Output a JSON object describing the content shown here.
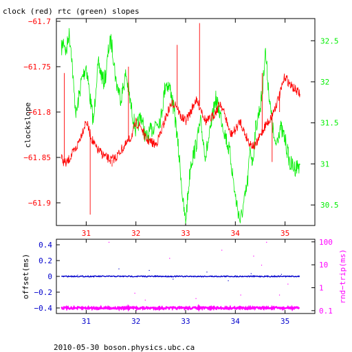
{
  "title": "clock (red) rtc (green) slopes",
  "footer": "2010-05-30  boson.physics.ubc.ca",
  "colors": {
    "clock": "#ff0000",
    "rtc": "#00ee00",
    "offset": "#0000cc",
    "roundtrip": "#ff00ff",
    "axes": "#000000"
  },
  "chart_data": [
    {
      "type": "line",
      "name": "top-panel",
      "ylabel_left": "clockslope",
      "xlim": [
        30.4,
        35.6
      ],
      "x_ticks": [
        31,
        32,
        33,
        34,
        35
      ],
      "ylim_left": [
        -61.925,
        -61.697
      ],
      "y_ticks_left": [
        -61.7,
        -61.75,
        -61.8,
        -61.85,
        -61.9
      ],
      "y_tick_labels_left": [
        "−61.7",
        "−61.75",
        "−61.8",
        "−61.85",
        "−61.9"
      ],
      "ylim_right": [
        30.25,
        32.77
      ],
      "y_ticks_right": [
        32.5,
        32,
        31.5,
        31,
        30.5
      ],
      "series": [
        {
          "axis": "left",
          "x": [
            30.5,
            30.55,
            30.6,
            30.7,
            30.8,
            30.9,
            31.0,
            31.1,
            31.2,
            31.3,
            31.4,
            31.5,
            31.6,
            31.7,
            31.8,
            31.9,
            32.0,
            32.1,
            32.2,
            32.3,
            32.4,
            32.5,
            32.6,
            32.7,
            32.8,
            32.9,
            33.0,
            33.1,
            33.2,
            33.3,
            33.4,
            33.5,
            33.6,
            33.7,
            33.8,
            33.9,
            34.0,
            34.1,
            34.2,
            34.3,
            34.4,
            34.5,
            34.6,
            34.7,
            34.8,
            34.9,
            35.0,
            35.1,
            35.2,
            35.3
          ],
          "y": [
            -61.85,
            -61.855,
            -61.857,
            -61.848,
            -61.84,
            -61.825,
            -61.81,
            -61.828,
            -61.84,
            -61.845,
            -61.85,
            -61.853,
            -61.85,
            -61.842,
            -61.836,
            -61.828,
            -61.812,
            -61.816,
            -61.83,
            -61.833,
            -61.836,
            -61.823,
            -61.806,
            -61.792,
            -61.79,
            -61.805,
            -61.81,
            -61.8,
            -61.787,
            -61.795,
            -61.81,
            -61.808,
            -61.8,
            -61.79,
            -61.805,
            -61.825,
            -61.82,
            -61.81,
            -61.825,
            -61.835,
            -61.838,
            -61.826,
            -61.815,
            -61.808,
            -61.795,
            -61.78,
            -61.76,
            -61.77,
            -61.775,
            -61.78
          ],
          "spikes": [
            {
              "x": 30.56,
              "y": -61.757
            },
            {
              "x": 31.08,
              "y": -61.913
            },
            {
              "x": 31.52,
              "y": -61.86
            },
            {
              "x": 31.85,
              "y": -61.75
            },
            {
              "x": 32.83,
              "y": -61.726
            },
            {
              "x": 33.28,
              "y": -61.702
            },
            {
              "x": 34.54,
              "y": -61.757
            },
            {
              "x": 34.74,
              "y": -61.855
            },
            {
              "x": 34.89,
              "y": -61.8
            }
          ]
        },
        {
          "axis": "right",
          "x": [
            30.5,
            30.55,
            30.6,
            30.65,
            30.7,
            30.75,
            30.8,
            30.85,
            30.9,
            31.0,
            31.1,
            31.15,
            31.2,
            31.25,
            31.3,
            31.35,
            31.4,
            31.45,
            31.5,
            31.55,
            31.6,
            31.7,
            31.8,
            31.9,
            32.0,
            32.1,
            32.2,
            32.3,
            32.4,
            32.5,
            32.6,
            32.7,
            32.8,
            32.85,
            32.9,
            32.95,
            33.0,
            33.1,
            33.2,
            33.3,
            33.4,
            33.5,
            33.6,
            33.7,
            33.8,
            33.9,
            34.0,
            34.1,
            34.2,
            34.25,
            34.3,
            34.35,
            34.4,
            34.5,
            34.55,
            34.6,
            34.7,
            34.8,
            34.9,
            35.0,
            35.1,
            35.2,
            35.3
          ],
          "y": [
            32.4,
            32.5,
            32.35,
            32.6,
            32.4,
            31.9,
            31.6,
            31.8,
            32.0,
            32.2,
            31.7,
            31.5,
            32.0,
            32.2,
            32.1,
            32.0,
            32.1,
            32.4,
            32.5,
            32.3,
            32.0,
            31.8,
            32.1,
            31.7,
            31.4,
            31.6,
            31.3,
            31.4,
            31.5,
            31.55,
            32.0,
            31.9,
            31.5,
            31.2,
            30.9,
            30.5,
            30.3,
            31.0,
            31.2,
            31.5,
            31.1,
            31.4,
            31.8,
            31.6,
            31.35,
            31.1,
            30.6,
            30.3,
            30.6,
            30.8,
            31.2,
            31.0,
            31.4,
            31.7,
            31.9,
            32.4,
            31.7,
            31.2,
            31.45,
            31.3,
            31.0,
            30.95,
            31.0
          ]
        }
      ]
    },
    {
      "type": "scatter",
      "name": "bottom-panel",
      "ylabel_left": "offset(ms)",
      "ylabel_right": "rnd−trip(ms)",
      "xlim": [
        30.4,
        35.6
      ],
      "x_ticks": [
        31,
        32,
        33,
        34,
        35
      ],
      "ylim_left": [
        -0.47,
        0.47
      ],
      "y_ticks_left": [
        0.4,
        0.2,
        0,
        -0.2,
        -0.4
      ],
      "y_tick_labels_left": [
        "0.4",
        "0.2",
        "0",
        "−0.2",
        "−0.4"
      ],
      "y_scale_right": "log",
      "ylim_right": [
        0.075,
        130
      ],
      "y_ticks_right": [
        100,
        10,
        1,
        0.1
      ],
      "series": [
        {
          "axis": "left",
          "x_start": 30.5,
          "x_end": 35.3,
          "baseline": 0.0,
          "outliers": [
            {
              "x": 30.82,
              "y": 0.02
            },
            {
              "x": 31.65,
              "y": 0.1
            },
            {
              "x": 32.26,
              "y": 0.08
            },
            {
              "x": 32.74,
              "y": -0.03
            },
            {
              "x": 33.42,
              "y": 0.06
            },
            {
              "x": 33.85,
              "y": -0.05
            },
            {
              "x": 34.31,
              "y": 0.04
            },
            {
              "x": 34.92,
              "y": 0.03
            }
          ]
        },
        {
          "axis": "right",
          "x_start": 30.5,
          "x_end": 35.3,
          "baseline": 0.13,
          "outliers": [
            {
              "x": 31.45,
              "y": 100
            },
            {
              "x": 31.97,
              "y": 0.6
            },
            {
              "x": 32.18,
              "y": 0.3
            },
            {
              "x": 32.67,
              "y": 20
            },
            {
              "x": 33.2,
              "y": 0.35
            },
            {
              "x": 33.72,
              "y": 45
            },
            {
              "x": 34.1,
              "y": 0.5
            },
            {
              "x": 34.36,
              "y": 25
            },
            {
              "x": 34.52,
              "y": 10
            },
            {
              "x": 34.62,
              "y": 100
            },
            {
              "x": 34.88,
              "y": 0.5
            },
            {
              "x": 35.05,
              "y": 1.5
            }
          ]
        }
      ]
    }
  ]
}
